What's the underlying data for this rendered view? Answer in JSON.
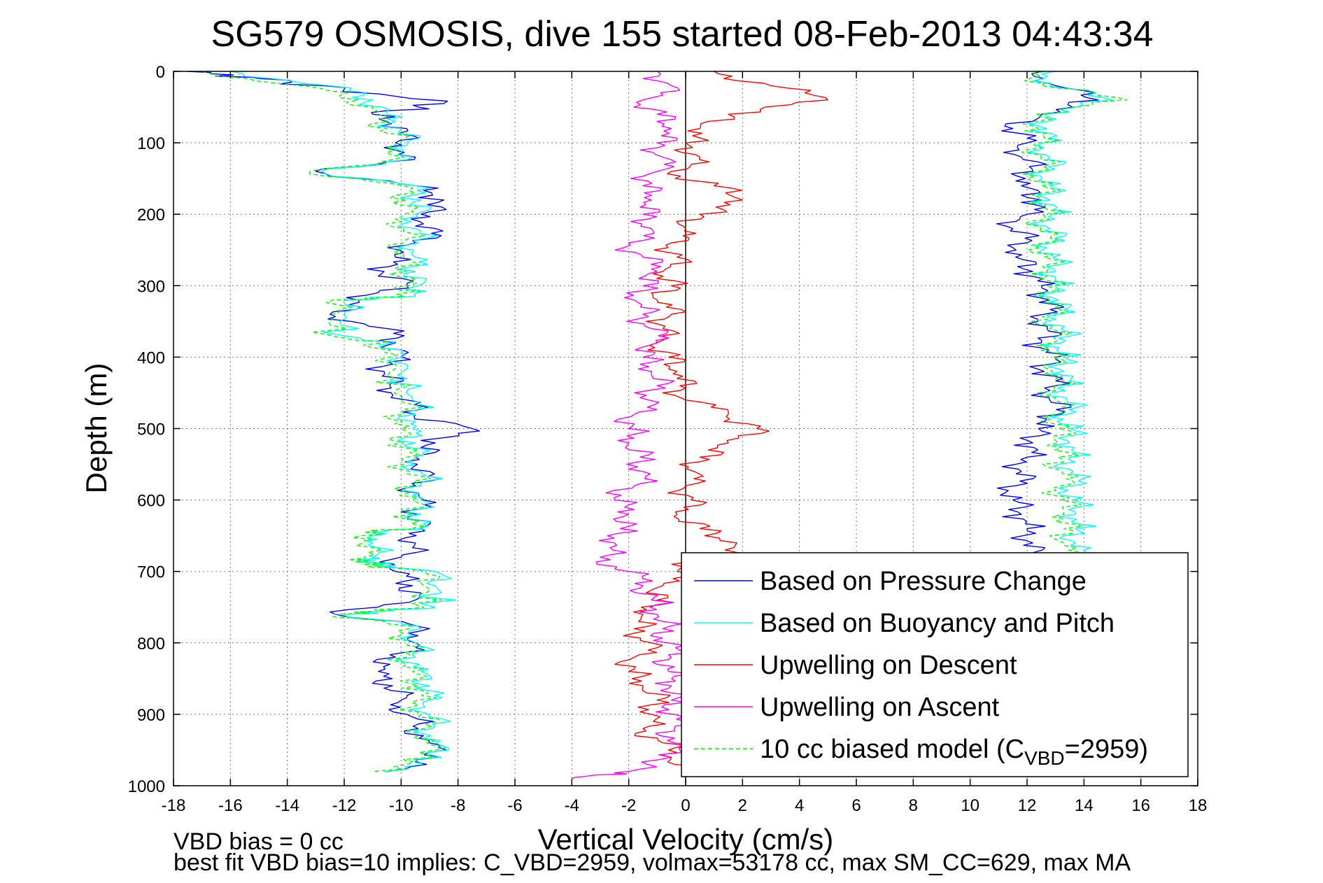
{
  "chart_data": {
    "type": "line",
    "title": "SG579 OSMOSIS, dive 155 started 08-Feb-2013 04:43:34",
    "xlabel": "Vertical Velocity (cm/s)",
    "ylabel": "Depth (m)",
    "xlim": [
      -18,
      18
    ],
    "ylim": [
      0,
      1000
    ],
    "y_reversed": true,
    "grid": true,
    "legend_position": "bottom-right",
    "xticks": [
      "-18",
      "-16",
      "-14",
      "-12",
      "-10",
      "-8",
      "-6",
      "-4",
      "-2",
      "0",
      "2",
      "4",
      "6",
      "8",
      "10",
      "12",
      "14",
      "16",
      "18"
    ],
    "yticks": [
      "0",
      "100",
      "200",
      "300",
      "400",
      "500",
      "600",
      "700",
      "800",
      "900",
      "1000"
    ],
    "footnote_lines": [
      "VBD bias = 0 cc",
      "best fit VBD bias=10 implies: C_VBD=2959, volmax=53178 cc, max SM_CC=629, max MA"
    ],
    "legend": [
      {
        "label": "Based on Pressure Change",
        "color": "#0000ff",
        "style": "solid"
      },
      {
        "label": "Based on Buoyancy and Pitch",
        "color": "#00ffff",
        "style": "solid"
      },
      {
        "label": "Upwelling on Descent",
        "color": "#ff0000",
        "style": "solid"
      },
      {
        "label": "Upwelling on Ascent",
        "color": "#ff00ff",
        "style": "solid"
      },
      {
        "label_prefix": "10 cc biased model (C",
        "label_sub": "VBD",
        "label_suffix": "=2959)",
        "color": "#00ff00",
        "style": "dashed"
      }
    ],
    "series": [
      {
        "name": "Based on Pressure Change",
        "segment": "descent",
        "color": "#0000ff",
        "depth": [
          0,
          10,
          25,
          45,
          60,
          80,
          100,
          120,
          140,
          160,
          180,
          200,
          220,
          240,
          260,
          280,
          300,
          320,
          340,
          360,
          380,
          400,
          420,
          440,
          460,
          480,
          500,
          520,
          540,
          560,
          580,
          600,
          620,
          640,
          660,
          680,
          700,
          720,
          740,
          760,
          780,
          800,
          820,
          840,
          860,
          880,
          900,
          920,
          940,
          960,
          980
        ],
        "velocity": [
          -17.5,
          -15.0,
          -12.0,
          -8.5,
          -11.0,
          -9.8,
          -10.2,
          -9.5,
          -13.0,
          -9.5,
          -8.5,
          -9.3,
          -8.8,
          -9.5,
          -10.2,
          -10.6,
          -9.8,
          -11.5,
          -12.5,
          -10.5,
          -10.2,
          -10.0,
          -10.6,
          -10.4,
          -9.8,
          -9.5,
          -7.5,
          -8.8,
          -9.5,
          -9.0,
          -9.5,
          -9.2,
          -9.4,
          -9.3,
          -9.5,
          -10.0,
          -10.2,
          -9.6,
          -9.5,
          -12.3,
          -9.0,
          -9.5,
          -10.2,
          -10.8,
          -10.3,
          -10.0,
          -9.8,
          -9.4,
          -9.0,
          -8.6,
          -10.5
        ]
      },
      {
        "name": "Based on Buoyancy and Pitch",
        "segment": "descent",
        "color": "#00ffff",
        "depth": [
          0,
          20,
          40,
          60,
          80,
          100,
          120,
          140,
          160,
          180,
          200,
          220,
          240,
          260,
          280,
          300,
          315,
          320,
          340,
          370,
          380,
          400,
          430,
          460,
          480,
          500,
          520,
          540,
          560,
          580,
          600,
          620,
          640,
          645,
          660,
          680,
          690,
          700,
          720,
          750,
          760,
          780,
          800,
          820,
          840,
          860,
          880,
          900,
          920,
          940,
          960,
          980
        ],
        "velocity": [
          -16.0,
          -12.5,
          -11.0,
          -10.5,
          -10.0,
          -9.8,
          -9.6,
          -12.8,
          -9.5,
          -9.3,
          -9.5,
          -9.5,
          -9.4,
          -9.5,
          -9.5,
          -9.4,
          -9.5,
          -12.0,
          -12.0,
          -12.0,
          -10.3,
          -10.0,
          -9.8,
          -9.6,
          -9.5,
          -9.6,
          -9.5,
          -9.5,
          -9.3,
          -9.3,
          -9.3,
          -9.3,
          -9.4,
          -11.0,
          -11.0,
          -11.0,
          -11.0,
          -8.8,
          -8.8,
          -8.8,
          -12.0,
          -9.3,
          -9.5,
          -9.5,
          -9.3,
          -9.0,
          -9.0,
          -9.0,
          -8.9,
          -8.8,
          -8.6,
          -10.6
        ]
      },
      {
        "name": "10 cc biased model (CVBD=2959)",
        "segment": "descent",
        "color": "#00ff00",
        "dashed": true,
        "depth": [
          0,
          20,
          40,
          60,
          80,
          100,
          120,
          140,
          160,
          180,
          200,
          220,
          240,
          260,
          280,
          300,
          315,
          320,
          340,
          370,
          380,
          400,
          430,
          460,
          480,
          500,
          520,
          540,
          560,
          580,
          600,
          620,
          640,
          645,
          660,
          680,
          690,
          700,
          720,
          750,
          760,
          780,
          800,
          820,
          840,
          860,
          880,
          900,
          920,
          940,
          960,
          980
        ],
        "velocity": [
          -17.0,
          -13.5,
          -11.5,
          -10.8,
          -10.5,
          -10.1,
          -9.9,
          -13.2,
          -9.9,
          -9.8,
          -9.9,
          -9.9,
          -9.9,
          -9.9,
          -9.8,
          -9.8,
          -9.9,
          -12.4,
          -12.4,
          -12.4,
          -10.7,
          -10.4,
          -10.2,
          -10.0,
          -9.9,
          -10.0,
          -9.9,
          -9.8,
          -9.7,
          -9.6,
          -9.6,
          -9.6,
          -9.7,
          -11.3,
          -11.3,
          -11.3,
          -11.3,
          -9.2,
          -9.2,
          -9.2,
          -12.4,
          -9.7,
          -9.8,
          -9.8,
          -9.6,
          -9.4,
          -9.4,
          -9.3,
          -9.2,
          -9.1,
          -8.9,
          -11.0
        ]
      },
      {
        "name": "Based on Pressure Change",
        "segment": "ascent",
        "color": "#0000ff",
        "depth": [
          0,
          20,
          40,
          60,
          80,
          100,
          120,
          140,
          160,
          180,
          200,
          220,
          240,
          260,
          280,
          300,
          320,
          340,
          360,
          380,
          400,
          420,
          440,
          460,
          480,
          500,
          520,
          540,
          560,
          580,
          600,
          620,
          640,
          660,
          680
        ],
        "velocity": [
          12.5,
          13.0,
          14.5,
          12.5,
          11.5,
          12.0,
          11.8,
          12.2,
          11.8,
          12.5,
          12.0,
          11.5,
          12.0,
          11.6,
          12.2,
          12.5,
          12.8,
          12.6,
          12.7,
          12.5,
          13.0,
          12.6,
          13.0,
          12.8,
          13.2,
          12.4,
          12.2,
          12.0,
          11.8,
          11.6,
          11.5,
          11.8,
          12.0,
          12.2,
          12.0
        ]
      },
      {
        "name": "Based on Buoyancy and Pitch",
        "segment": "ascent",
        "color": "#00ffff",
        "depth": [
          0,
          20,
          40,
          60,
          80,
          100,
          120,
          140,
          160,
          180,
          200,
          220,
          240,
          260,
          280,
          300,
          320,
          340,
          360,
          380,
          400,
          420,
          440,
          460,
          480,
          500,
          520,
          540,
          560,
          580,
          600,
          620,
          640,
          660,
          680
        ],
        "velocity": [
          13.0,
          12.8,
          15.0,
          12.6,
          12.7,
          12.6,
          12.8,
          12.7,
          12.8,
          12.8,
          12.9,
          12.8,
          12.9,
          12.9,
          13.0,
          13.0,
          13.1,
          13.1,
          13.2,
          13.2,
          13.3,
          13.3,
          13.3,
          13.4,
          13.4,
          13.5,
          13.5,
          13.5,
          13.6,
          13.6,
          13.6,
          13.7,
          13.7,
          13.7,
          13.8
        ]
      },
      {
        "name": "10 cc biased model (CVBD=2959)",
        "segment": "ascent",
        "color": "#00ff00",
        "dashed": true,
        "depth": [
          0,
          20,
          40,
          60,
          80,
          100,
          120,
          140,
          160,
          180,
          200,
          220,
          240,
          260,
          280,
          300,
          320,
          340,
          360,
          380,
          400,
          420,
          440,
          460,
          480,
          500,
          520,
          540,
          560,
          580,
          600,
          620,
          640,
          660,
          680
        ],
        "velocity": [
          12.6,
          12.5,
          15.5,
          12.3,
          12.4,
          12.4,
          12.5,
          12.4,
          12.5,
          12.5,
          12.6,
          12.5,
          12.6,
          12.6,
          12.7,
          12.7,
          12.8,
          12.8,
          12.8,
          12.9,
          12.9,
          12.9,
          13.0,
          13.0,
          13.0,
          13.1,
          13.1,
          13.1,
          13.2,
          13.2,
          13.2,
          13.3,
          13.3,
          13.3,
          13.4
        ]
      },
      {
        "name": "Upwelling on Descent",
        "color": "#ff0000",
        "depth": [
          0,
          20,
          40,
          60,
          80,
          100,
          120,
          140,
          160,
          180,
          200,
          220,
          240,
          260,
          280,
          300,
          320,
          340,
          360,
          380,
          400,
          420,
          440,
          460,
          480,
          500,
          520,
          540,
          560,
          580,
          600,
          620,
          640,
          660,
          680,
          700,
          720,
          740,
          760,
          780,
          800,
          820,
          840,
          860,
          880,
          900,
          920,
          940,
          960,
          980
        ],
        "velocity": [
          1.0,
          3.0,
          5.0,
          1.5,
          0.5,
          0.0,
          0.5,
          -0.5,
          1.0,
          2.0,
          0.5,
          0.0,
          -0.5,
          -0.3,
          -0.8,
          -0.5,
          -1.0,
          -0.5,
          -0.8,
          -1.0,
          -0.6,
          -0.3,
          -0.2,
          0.0,
          1.5,
          2.5,
          1.5,
          0.5,
          0.3,
          0.0,
          0.2,
          -0.3,
          0.5,
          1.8,
          0.8,
          -0.3,
          -0.8,
          -1.0,
          -1.5,
          -1.8,
          -1.2,
          -1.8,
          -2.0,
          -1.5,
          -1.0,
          -1.2,
          -1.5,
          -0.8,
          -0.5,
          0.2
        ]
      },
      {
        "name": "Upwelling on Ascent",
        "color": "#ff00ff",
        "depth": [
          0,
          20,
          40,
          60,
          80,
          100,
          120,
          140,
          160,
          180,
          200,
          220,
          240,
          260,
          280,
          300,
          320,
          340,
          360,
          380,
          400,
          420,
          440,
          460,
          480,
          500,
          520,
          540,
          560,
          580,
          600,
          620,
          640,
          660,
          680,
          700,
          720,
          740,
          760,
          780,
          800,
          820,
          840,
          860,
          880,
          900,
          920,
          940,
          960,
          980,
          990
        ],
        "velocity": [
          -1.0,
          -0.5,
          -1.5,
          -1.0,
          -0.5,
          -1.0,
          -0.8,
          -1.0,
          -1.5,
          -1.2,
          -1.5,
          -1.2,
          -2.0,
          -1.5,
          -1.0,
          -1.5,
          -1.8,
          -1.5,
          -1.2,
          -1.0,
          -1.5,
          -1.2,
          -1.0,
          -1.3,
          -1.8,
          -2.0,
          -2.0,
          -1.6,
          -1.5,
          -1.8,
          -2.5,
          -2.0,
          -2.3,
          -2.5,
          -3.0,
          -2.0,
          -1.5,
          -1.2,
          -1.0,
          -0.8,
          -0.6,
          -0.5,
          -0.6,
          -0.5,
          -0.5,
          -0.4,
          -0.4,
          -0.4,
          -0.5,
          -2.0,
          -4.0
        ]
      }
    ]
  }
}
